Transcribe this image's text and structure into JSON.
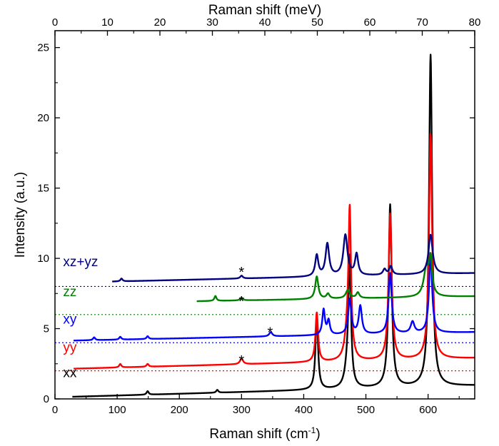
{
  "chart_data": {
    "type": "line",
    "title": "",
    "xlabel": "Raman shift (cm-1)",
    "xlabel_main": "Raman shift (cm",
    "xlabel_sup": "-1",
    "xlabel_close": ")",
    "x2label": "Raman shift (meV)",
    "ylabel": "Intensity (a.u.)",
    "xlim": [
      0,
      675
    ],
    "ylim": [
      0,
      26.2
    ],
    "x2lim": [
      0,
      80
    ],
    "xticks": [
      0,
      100,
      200,
      300,
      400,
      500,
      600
    ],
    "yticks": [
      0,
      5,
      10,
      15,
      20,
      25
    ],
    "x2ticks": [
      0,
      10,
      20,
      30,
      40,
      50,
      60,
      70,
      80
    ],
    "grid": false,
    "legend": "none",
    "series": [
      {
        "name": "xx",
        "color": "#000000",
        "offset": 0,
        "baseline_start": 0.15,
        "baseline_end": 0.95,
        "x_start": 28,
        "x_end": 675,
        "peaks": [
          [
            149,
            0.25,
            2
          ],
          [
            261,
            0.2,
            2
          ],
          [
            421,
            5.3,
            2.5
          ],
          [
            470,
            1.2,
            5
          ],
          [
            474,
            8.8,
            2.5
          ],
          [
            539,
            13.0,
            3
          ],
          [
            604,
            23.6,
            3
          ]
        ]
      },
      {
        "name": "yy",
        "color": "#ff0000",
        "offset": 2.0,
        "baseline_start": 2.15,
        "baseline_end": 2.9,
        "x_start": 30,
        "x_end": 675,
        "peaks": [
          [
            105,
            0.25,
            2
          ],
          [
            149,
            0.2,
            2
          ],
          [
            300,
            0.4,
            3
          ],
          [
            421,
            3.5,
            2.5
          ],
          [
            470,
            1.5,
            5
          ],
          [
            474,
            10.2,
            2.5
          ],
          [
            539,
            10.4,
            3
          ],
          [
            604,
            16.0,
            3
          ]
        ]
      },
      {
        "name": "xy",
        "color": "#0000ff",
        "offset": 4.0,
        "baseline_start": 4.15,
        "baseline_end": 4.75,
        "x_start": 30,
        "x_end": 675,
        "peaks": [
          [
            63,
            0.2,
            2
          ],
          [
            105,
            0.2,
            2
          ],
          [
            149,
            0.2,
            2
          ],
          [
            347,
            0.3,
            3
          ],
          [
            432,
            1.8,
            2.5
          ],
          [
            440,
            1.0,
            2.5
          ],
          [
            474,
            2.5,
            3
          ],
          [
            491,
            2.0,
            3
          ],
          [
            539,
            4.3,
            3
          ],
          [
            575,
            0.8,
            3.5
          ],
          [
            604,
            5.5,
            3
          ]
        ]
      },
      {
        "name": "zz",
        "color": "#008000",
        "offset": 6.0,
        "baseline_start": 6.95,
        "baseline_end": 7.3,
        "x_start": 228,
        "x_end": 675,
        "peaks": [
          [
            258,
            0.35,
            2
          ],
          [
            300,
            0.2,
            2.5
          ],
          [
            421,
            1.6,
            3
          ],
          [
            439,
            0.35,
            3
          ],
          [
            471,
            0.6,
            4
          ],
          [
            487,
            0.4,
            3
          ],
          [
            597,
            1.9,
            5
          ],
          [
            604,
            2.5,
            3
          ]
        ]
      },
      {
        "name": "xz+yz",
        "color": "#000080",
        "offset": 8.0,
        "baseline_start": 8.35,
        "baseline_end": 8.95,
        "x_start": 92,
        "x_end": 675,
        "peaks": [
          [
            107,
            0.2,
            2
          ],
          [
            300,
            0.2,
            2.5
          ],
          [
            421,
            1.5,
            3
          ],
          [
            438,
            2.3,
            3.5
          ],
          [
            467,
            2.9,
            4
          ],
          [
            485,
            1.5,
            3
          ],
          [
            530,
            0.4,
            3
          ],
          [
            540,
            0.6,
            3
          ],
          [
            604,
            2.8,
            4
          ]
        ]
      }
    ],
    "offset_lines": [
      {
        "y": 2.0,
        "color": "#ff0000"
      },
      {
        "y": 4.0,
        "color": "#0000ff"
      },
      {
        "y": 6.0,
        "color": "#008000"
      },
      {
        "y": 8.0,
        "color": "#000080"
      }
    ],
    "series_labels": [
      {
        "text": "xx",
        "color": "#000000",
        "x": 13,
        "y": 1.55
      },
      {
        "text": "yy",
        "color": "#ff0000",
        "x": 13,
        "y": 3.35
      },
      {
        "text": "xy",
        "color": "#0000ff",
        "x": 13,
        "y": 5.35
      },
      {
        "text": "zz",
        "color": "#008000",
        "x": 13,
        "y": 7.3
      },
      {
        "text": "xz+yz",
        "color": "#000080",
        "x": 13,
        "y": 9.45
      }
    ],
    "annotations": [
      {
        "text": "*",
        "x": 300,
        "y": 3.1
      },
      {
        "text": "*",
        "x": 346,
        "y": 5.1
      },
      {
        "text": "*",
        "x": 300,
        "y": 7.3
      },
      {
        "text": "*",
        "x": 300,
        "y": 9.4
      }
    ]
  }
}
